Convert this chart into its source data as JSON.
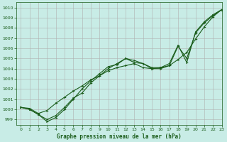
{
  "title": "Graphe pression niveau de la mer (hPa)",
  "background_color": "#c8ece6",
  "grid_color": "#b0b0b0",
  "line_color": "#1a5c1a",
  "xlim": [
    -0.5,
    23
  ],
  "ylim": [
    998.5,
    1010.5
  ],
  "yticks": [
    999,
    1000,
    1001,
    1002,
    1003,
    1004,
    1005,
    1006,
    1007,
    1008,
    1009,
    1010
  ],
  "xticks": [
    0,
    1,
    2,
    3,
    4,
    5,
    6,
    7,
    8,
    9,
    10,
    11,
    12,
    13,
    14,
    15,
    16,
    17,
    18,
    19,
    20,
    21,
    22,
    23
  ],
  "series1_x": [
    0,
    1,
    2,
    3,
    4,
    5,
    6,
    7,
    8,
    9,
    10,
    11,
    12,
    13,
    14,
    15,
    16,
    17,
    18,
    19,
    20,
    21,
    22,
    23
  ],
  "series1_y": [
    1000.2,
    1000.0,
    999.5,
    998.8,
    999.2,
    1000.0,
    1001.0,
    1002.0,
    1002.8,
    1003.5,
    1004.2,
    1004.4,
    1005.0,
    1004.8,
    1004.5,
    1004.0,
    1004.0,
    1004.3,
    1006.2,
    1005.0,
    1007.5,
    1008.5,
    1009.2,
    1009.8
  ],
  "series2_x": [
    0,
    1,
    2,
    3,
    4,
    5,
    6,
    7,
    8,
    9,
    10,
    11,
    12,
    13,
    14,
    15,
    16,
    17,
    18,
    19,
    20,
    21,
    22,
    23
  ],
  "series2_y": [
    1000.2,
    1000.1,
    999.6,
    999.9,
    1000.6,
    1001.2,
    1001.8,
    1002.3,
    1002.9,
    1003.3,
    1003.8,
    1004.1,
    1004.3,
    1004.5,
    1004.1,
    1004.0,
    1004.1,
    1004.3,
    1004.9,
    1005.6,
    1006.9,
    1008.1,
    1009.1,
    1009.8
  ],
  "series3_x": [
    0,
    1,
    2,
    3,
    4,
    5,
    6,
    7,
    8,
    9,
    10,
    11,
    12,
    13,
    14,
    15,
    16,
    17,
    18,
    19,
    20,
    21,
    22,
    23
  ],
  "series3_y": [
    1000.2,
    1000.0,
    999.5,
    999.0,
    999.4,
    1000.2,
    1001.1,
    1001.6,
    1002.6,
    1003.3,
    1004.0,
    1004.5,
    1005.0,
    1004.6,
    1004.5,
    1004.1,
    1004.1,
    1004.5,
    1006.3,
    1004.6,
    1007.6,
    1008.6,
    1009.3,
    1009.8
  ]
}
